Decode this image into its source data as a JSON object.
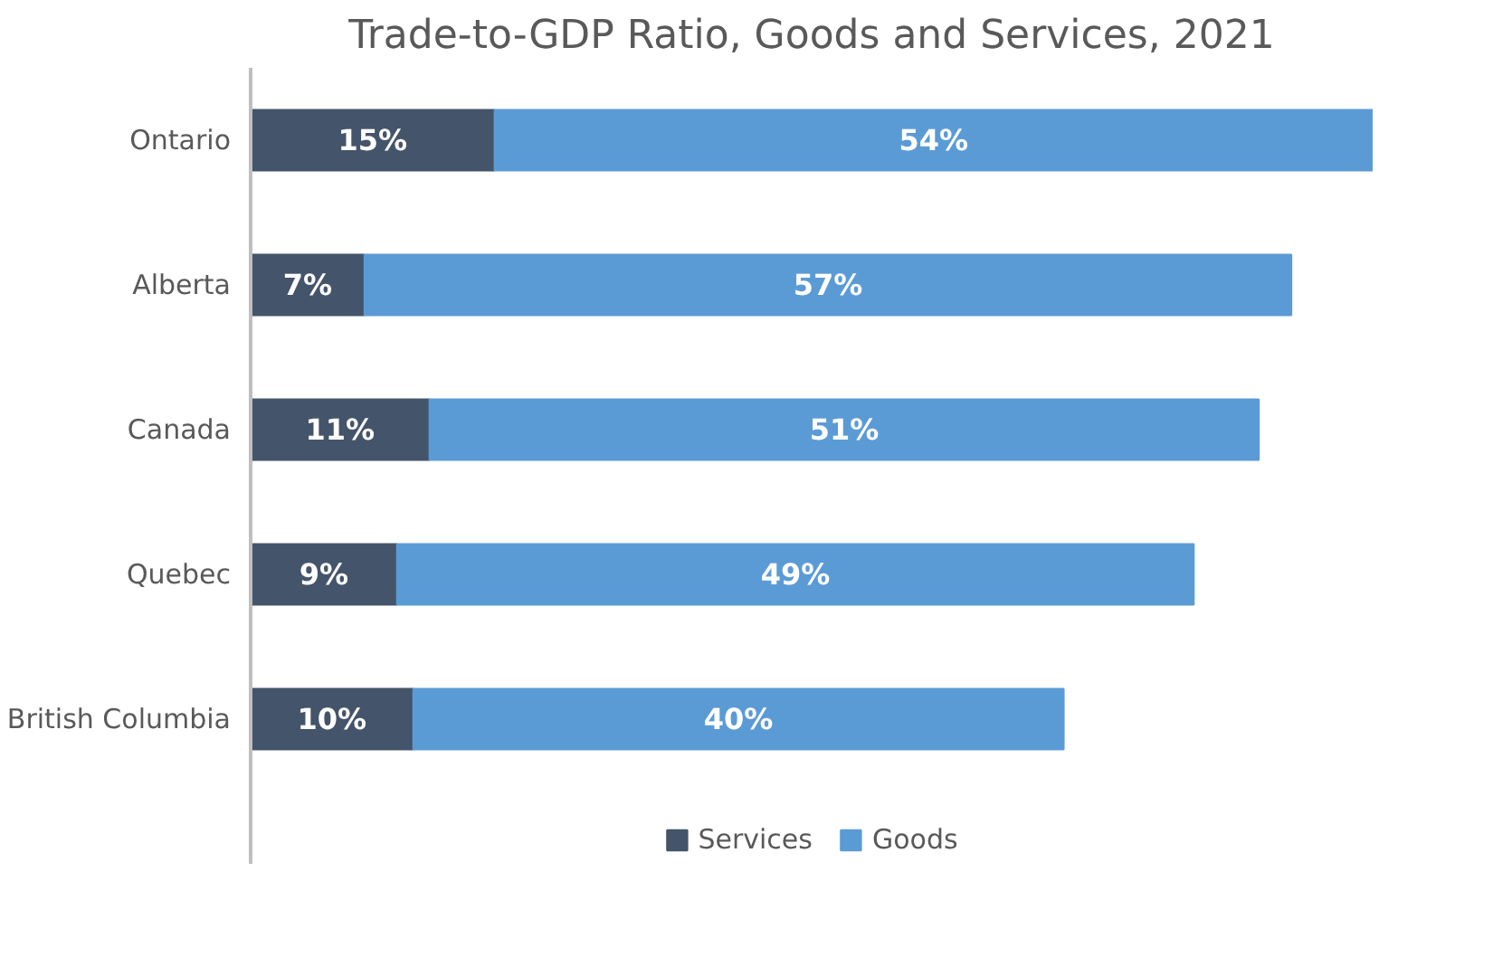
{
  "chart_data": {
    "type": "bar",
    "orientation": "horizontal",
    "stacked": true,
    "title": "Trade-to-GDP Ratio, Goods and Services, 2021",
    "categories": [
      "Ontario",
      "Alberta",
      "Canada",
      "Quebec",
      "British Columbia"
    ],
    "series": [
      {
        "name": "Services",
        "color": "#44546a",
        "values": [
          15,
          7,
          11,
          9,
          10
        ],
        "value_labels": [
          "15%",
          "7%",
          "11%",
          "9%",
          "10%"
        ]
      },
      {
        "name": "Goods",
        "color": "#5b9bd5",
        "values": [
          54,
          57,
          51,
          49,
          40
        ],
        "value_labels": [
          "54%",
          "57%",
          "51%",
          "49%",
          "40%"
        ]
      }
    ],
    "legend": "bottom",
    "grid": false
  }
}
